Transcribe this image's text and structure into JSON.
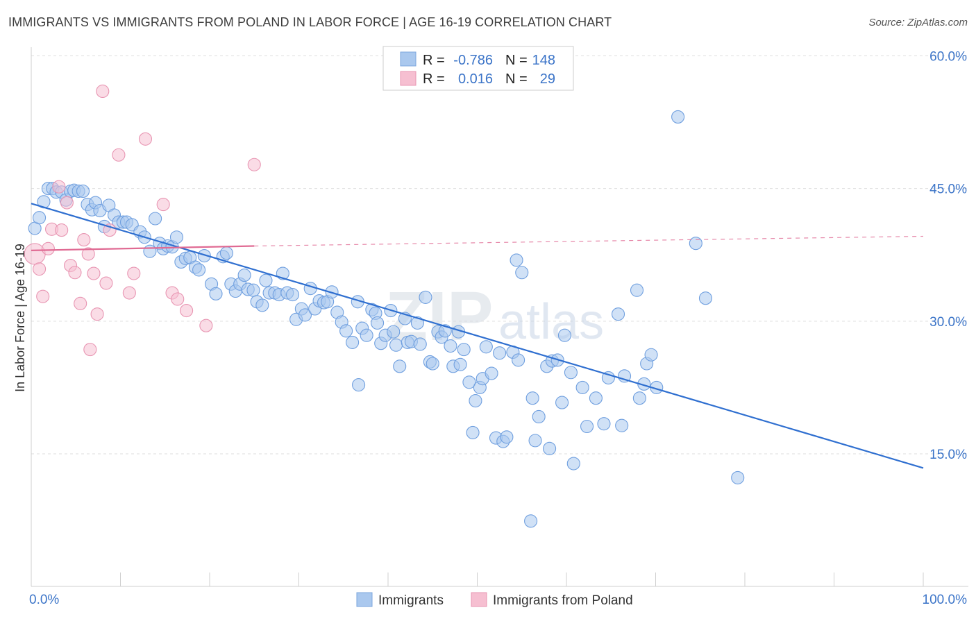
{
  "title": "IMMIGRANTS VS IMMIGRANTS FROM POLAND IN LABOR FORCE | AGE 16-19 CORRELATION CHART",
  "source": "Source: ZipAtlas.com",
  "watermark": {
    "zip": "ZIP",
    "atlas": "atlas"
  },
  "colors": {
    "blue": "#3b74c8",
    "blue_fill": "#aac8ee",
    "blue_line": "#2f6fd0",
    "pink": "#e57fa3",
    "pink_fill": "#f6bfd1",
    "pink_line": "#e06a93",
    "grid": "#dddddd"
  },
  "legend": {
    "rows": [
      {
        "r_label": "R =",
        "r_value": "-0.786",
        "n_label": "N =",
        "n_value": "148",
        "color": "blue"
      },
      {
        "r_label": "R =",
        "r_value": "0.016",
        "n_label": "N =",
        "n_value": "29",
        "color": "pink"
      }
    ]
  },
  "bottom_legend": [
    {
      "label": "Immigrants",
      "color": "blue"
    },
    {
      "label": "Immigrants from Poland",
      "color": "pink"
    }
  ],
  "chart_data": {
    "type": "scatter",
    "xlabel": "",
    "ylabel": "In Labor Force | Age 16-19",
    "xlim": [
      0,
      100
    ],
    "ylim": [
      0,
      63
    ],
    "x_tick_labels": [
      {
        "value": 0,
        "label": "0.0%"
      },
      {
        "value": 100,
        "label": "100.0%"
      }
    ],
    "y_tick_labels": [
      {
        "value": 15,
        "label": "15.0%"
      },
      {
        "value": 30,
        "label": "30.0%"
      },
      {
        "value": 45,
        "label": "45.0%"
      },
      {
        "value": 60,
        "label": "60.0%"
      }
    ],
    "y_gridlines": [
      15,
      30,
      45,
      60
    ],
    "x_minor_ticks": [
      10,
      20,
      30,
      40,
      50,
      60,
      70,
      80,
      90
    ],
    "series": [
      {
        "name": "Immigrants",
        "color": "blue",
        "trend": {
          "x": [
            0,
            100
          ],
          "y": [
            43.3,
            13.4
          ],
          "dashed_x": null
        },
        "points": [
          [
            0.4,
            40.5
          ],
          [
            0.9,
            41.7
          ],
          [
            1.4,
            43.5
          ],
          [
            1.9,
            45.0
          ],
          [
            2.4,
            45.0
          ],
          [
            2.8,
            44.6
          ],
          [
            3.4,
            44.6
          ],
          [
            3.9,
            43.7
          ],
          [
            4.4,
            44.7
          ],
          [
            4.8,
            44.8
          ],
          [
            5.3,
            44.7
          ],
          [
            5.8,
            44.7
          ],
          [
            6.3,
            43.2
          ],
          [
            6.8,
            42.6
          ],
          [
            7.2,
            43.4
          ],
          [
            7.7,
            42.5
          ],
          [
            8.2,
            40.7
          ],
          [
            8.7,
            43.1
          ],
          [
            9.3,
            42.0
          ],
          [
            9.8,
            41.2
          ],
          [
            10.3,
            41.2
          ],
          [
            10.7,
            41.2
          ],
          [
            11.3,
            40.9
          ],
          [
            12.2,
            40.1
          ],
          [
            12.7,
            39.5
          ],
          [
            13.3,
            37.9
          ],
          [
            13.9,
            41.6
          ],
          [
            14.4,
            38.8
          ],
          [
            14.8,
            38.2
          ],
          [
            15.3,
            38.5
          ],
          [
            15.8,
            38.4
          ],
          [
            16.3,
            39.5
          ],
          [
            16.8,
            36.7
          ],
          [
            17.3,
            37.1
          ],
          [
            17.8,
            37.2
          ],
          [
            18.4,
            36.1
          ],
          [
            18.8,
            35.8
          ],
          [
            19.4,
            37.4
          ],
          [
            20.2,
            34.2
          ],
          [
            20.7,
            33.1
          ],
          [
            21.5,
            37.3
          ],
          [
            21.9,
            37.7
          ],
          [
            22.4,
            34.2
          ],
          [
            22.9,
            33.4
          ],
          [
            23.4,
            34.2
          ],
          [
            23.9,
            35.2
          ],
          [
            24.3,
            33.6
          ],
          [
            24.9,
            33.5
          ],
          [
            25.3,
            32.2
          ],
          [
            25.9,
            31.8
          ],
          [
            26.3,
            34.6
          ],
          [
            26.7,
            33.2
          ],
          [
            27.3,
            33.2
          ],
          [
            27.8,
            33.0
          ],
          [
            28.2,
            35.4
          ],
          [
            28.7,
            33.2
          ],
          [
            29.3,
            33.0
          ],
          [
            29.7,
            30.2
          ],
          [
            30.3,
            31.4
          ],
          [
            30.7,
            30.7
          ],
          [
            31.3,
            33.7
          ],
          [
            31.8,
            31.4
          ],
          [
            32.3,
            32.3
          ],
          [
            32.8,
            32.1
          ],
          [
            33.2,
            32.2
          ],
          [
            33.7,
            33.3
          ],
          [
            34.3,
            31.0
          ],
          [
            34.8,
            29.9
          ],
          [
            35.3,
            28.9
          ],
          [
            36.0,
            27.6
          ],
          [
            36.6,
            32.2
          ],
          [
            36.7,
            22.8
          ],
          [
            37.1,
            29.2
          ],
          [
            37.6,
            28.4
          ],
          [
            38.2,
            31.3
          ],
          [
            38.6,
            30.9
          ],
          [
            38.8,
            29.8
          ],
          [
            39.2,
            27.5
          ],
          [
            39.7,
            28.4
          ],
          [
            40.3,
            31.2
          ],
          [
            40.6,
            28.8
          ],
          [
            40.9,
            27.3
          ],
          [
            41.3,
            24.9
          ],
          [
            41.9,
            30.3
          ],
          [
            42.2,
            27.6
          ],
          [
            42.6,
            27.7
          ],
          [
            43.3,
            29.8
          ],
          [
            43.6,
            27.4
          ],
          [
            44.2,
            32.7
          ],
          [
            44.7,
            25.4
          ],
          [
            45.0,
            25.2
          ],
          [
            45.6,
            28.8
          ],
          [
            46.0,
            28.2
          ],
          [
            46.4,
            28.9
          ],
          [
            47.0,
            27.2
          ],
          [
            47.3,
            24.9
          ],
          [
            47.9,
            28.8
          ],
          [
            48.1,
            25.1
          ],
          [
            48.5,
            26.8
          ],
          [
            49.1,
            23.1
          ],
          [
            49.5,
            17.4
          ],
          [
            49.8,
            21.0
          ],
          [
            50.3,
            22.5
          ],
          [
            50.6,
            23.5
          ],
          [
            51.0,
            27.1
          ],
          [
            51.6,
            24.1
          ],
          [
            52.1,
            16.8
          ],
          [
            52.5,
            26.4
          ],
          [
            52.9,
            16.4
          ],
          [
            53.3,
            16.9
          ],
          [
            54.0,
            26.5
          ],
          [
            54.4,
            36.9
          ],
          [
            54.6,
            25.6
          ],
          [
            55.0,
            35.5
          ],
          [
            56.0,
            7.4
          ],
          [
            56.2,
            21.3
          ],
          [
            56.5,
            16.5
          ],
          [
            56.9,
            19.2
          ],
          [
            57.8,
            24.9
          ],
          [
            58.1,
            15.6
          ],
          [
            58.4,
            25.5
          ],
          [
            59.0,
            25.6
          ],
          [
            59.5,
            20.8
          ],
          [
            59.8,
            28.4
          ],
          [
            60.5,
            24.2
          ],
          [
            60.8,
            13.9
          ],
          [
            61.8,
            22.5
          ],
          [
            62.3,
            18.1
          ],
          [
            63.3,
            21.3
          ],
          [
            64.2,
            18.4
          ],
          [
            64.7,
            23.6
          ],
          [
            65.8,
            30.8
          ],
          [
            66.2,
            18.2
          ],
          [
            66.5,
            23.8
          ],
          [
            67.9,
            33.5
          ],
          [
            68.2,
            21.3
          ],
          [
            68.7,
            22.9
          ],
          [
            69.0,
            25.2
          ],
          [
            69.5,
            26.2
          ],
          [
            70.1,
            22.5
          ],
          [
            72.5,
            53.1
          ],
          [
            74.5,
            38.8
          ],
          [
            75.6,
            32.6
          ],
          [
            79.2,
            12.3
          ]
        ]
      },
      {
        "name": "Immigrants from Poland",
        "color": "pink",
        "trend": {
          "x": [
            0,
            25.0
          ],
          "y": [
            38.0,
            38.5
          ],
          "dashed_x": [
            25.0,
            100
          ],
          "dashed_y": [
            38.5,
            39.6
          ]
        },
        "points": [
          [
            0.4,
            37.6
          ],
          [
            0.9,
            35.9
          ],
          [
            1.3,
            32.8
          ],
          [
            1.9,
            38.2
          ],
          [
            2.3,
            40.4
          ],
          [
            3.1,
            45.2
          ],
          [
            3.4,
            40.3
          ],
          [
            4.0,
            43.4
          ],
          [
            4.4,
            36.3
          ],
          [
            4.9,
            35.5
          ],
          [
            5.5,
            32.0
          ],
          [
            5.9,
            39.2
          ],
          [
            6.4,
            37.6
          ],
          [
            7.0,
            35.4
          ],
          [
            7.4,
            30.8
          ],
          [
            8.0,
            56.0
          ],
          [
            8.4,
            34.3
          ],
          [
            8.8,
            40.3
          ],
          [
            9.8,
            48.8
          ],
          [
            11.0,
            33.2
          ],
          [
            11.5,
            35.4
          ],
          [
            12.8,
            50.6
          ],
          [
            14.8,
            43.2
          ],
          [
            15.8,
            33.2
          ],
          [
            16.4,
            32.5
          ],
          [
            17.4,
            31.2
          ],
          [
            19.6,
            29.5
          ],
          [
            25.0,
            47.7
          ],
          [
            6.6,
            26.8
          ]
        ]
      }
    ]
  }
}
